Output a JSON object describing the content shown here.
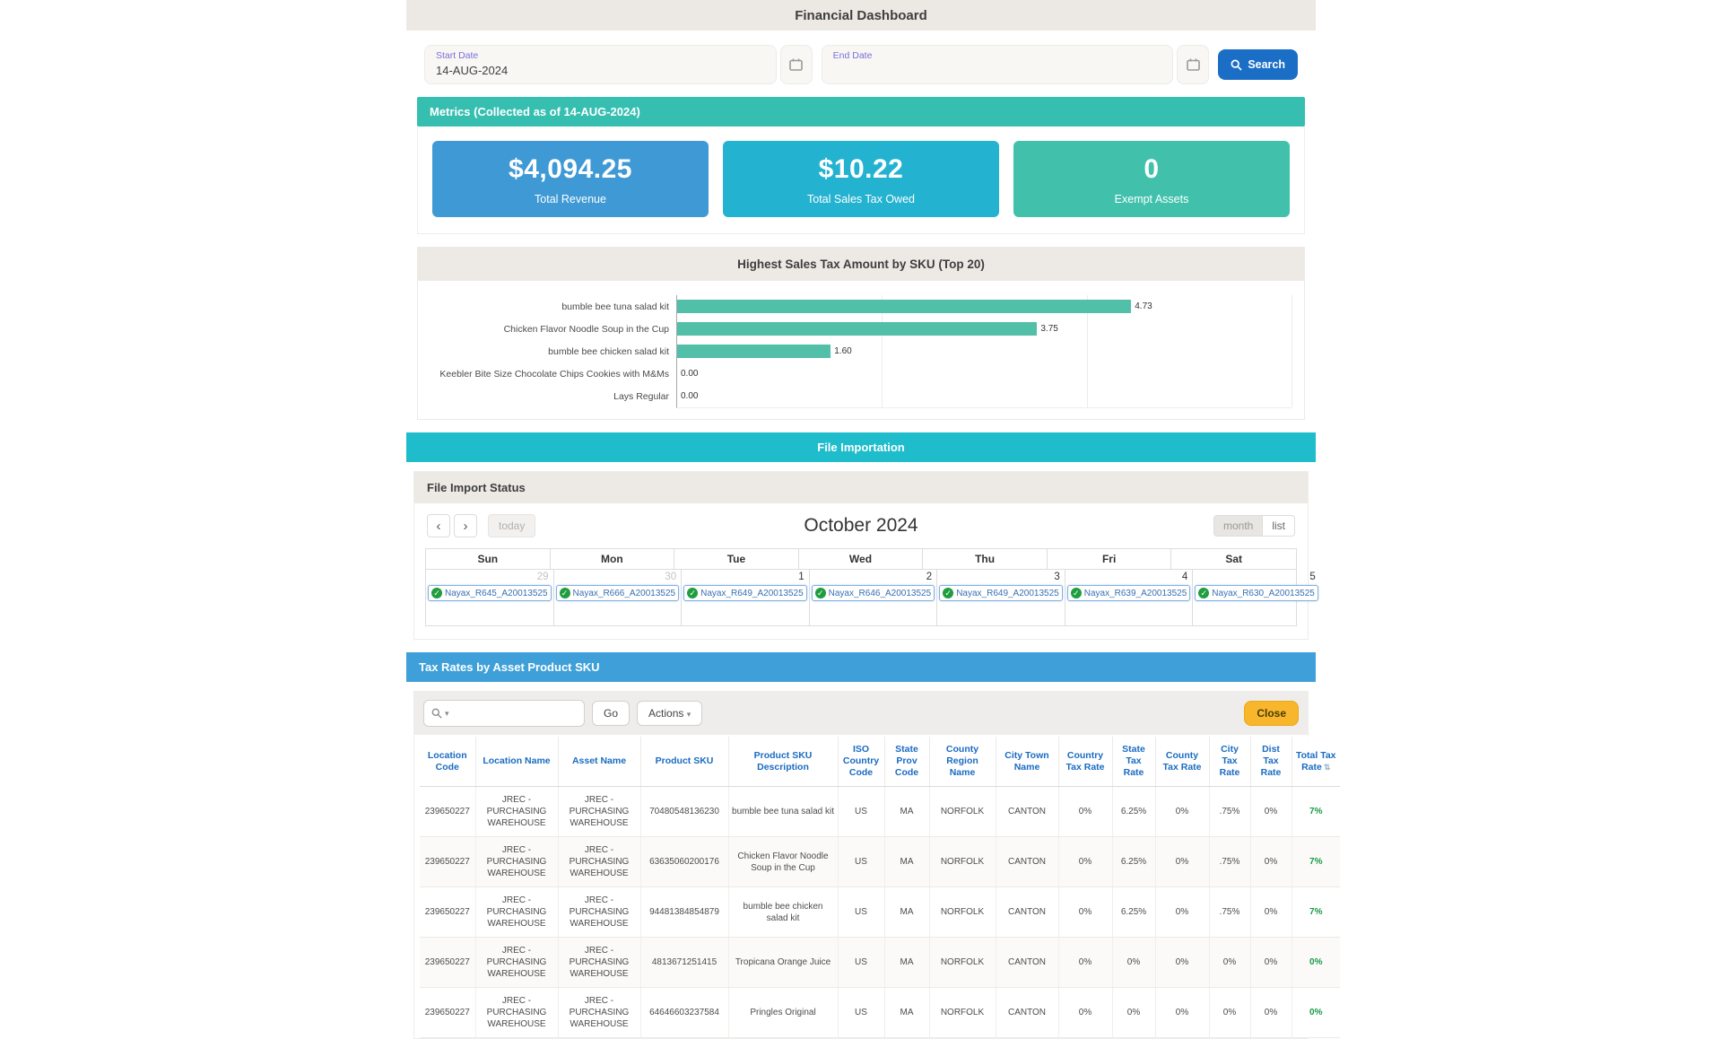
{
  "app": {
    "title": "Financial Dashboard"
  },
  "filters": {
    "start_date": {
      "label": "Start Date",
      "value": "14-AUG-2024"
    },
    "end_date": {
      "label": "End Date",
      "value": ""
    },
    "search_button": "Search",
    "search_button_color": "#1b6ec6"
  },
  "metrics": {
    "header": "Metrics (Collected as of 14-AUG-2024)",
    "header_color": "#36bfb1",
    "cards": [
      {
        "value": "$4,094.25",
        "label": "Total Revenue",
        "color": "#3e99d4"
      },
      {
        "value": "$10.22",
        "label": "Total Sales Tax Owed",
        "color": "#23b2d0"
      },
      {
        "value": "0",
        "label": "Exempt Assets",
        "color": "#41c1ac"
      }
    ]
  },
  "chart_data": {
    "type": "bar",
    "orientation": "horizontal",
    "title": "Highest Sales Tax Amount by SKU (Top 20)",
    "categories": [
      "bumble bee tuna salad kit",
      "Chicken Flavor Noodle Soup in the Cup",
      "bumble bee chicken salad kit",
      "Keebler Bite Size Chocolate Chips Cookies with M&Ms",
      "Lays Regular"
    ],
    "values": [
      4.73,
      3.75,
      1.6,
      0.0,
      0.0
    ],
    "value_labels": [
      "4.73",
      "3.75",
      "1.60",
      "0.00",
      "0.00"
    ],
    "xlabel": "",
    "ylabel": "",
    "xlim": [
      0,
      6.4
    ],
    "grid": true,
    "legend": false,
    "bar_color": "#52bfa9"
  },
  "file_importation": {
    "banner": "File Importation",
    "banner_color": "#1fbccb",
    "panel_title": "File Import Status",
    "calendar": {
      "title": "October 2024",
      "today_label": "today",
      "view_month": "month",
      "view_list": "list",
      "weekdays": [
        "Sun",
        "Mon",
        "Tue",
        "Wed",
        "Thu",
        "Fri",
        "Sat"
      ],
      "days": [
        {
          "num": "29",
          "muted": true,
          "event": "Nayax_R645_A20013525"
        },
        {
          "num": "30",
          "muted": true,
          "event": "Nayax_R666_A20013525"
        },
        {
          "num": "1",
          "muted": false,
          "event": "Nayax_R649_A20013525"
        },
        {
          "num": "2",
          "muted": false,
          "event": "Nayax_R646_A20013525"
        },
        {
          "num": "3",
          "muted": false,
          "event": "Nayax_R649_A20013525"
        },
        {
          "num": "4",
          "muted": false,
          "event": "Nayax_R639_A20013525"
        },
        {
          "num": "5",
          "muted": false,
          "event": "Nayax_R630_A20013525"
        }
      ],
      "event_check_color": "#1f9d3f"
    }
  },
  "tax_table": {
    "banner": "Tax Rates by Asset Product SKU",
    "banner_color": "#3e9fd9",
    "toolbar": {
      "go_label": "Go",
      "actions_label": "Actions",
      "close_label": "Close",
      "close_color": "#f7b62c"
    },
    "columns": [
      "Location Code",
      "Location Name",
      "Asset Name",
      "Product SKU",
      "Product SKU Description",
      "ISO Country Code",
      "State Prov Code",
      "County Region Name",
      "City Town Name",
      "Country Tax Rate",
      "State Tax Rate",
      "County Tax Rate",
      "City Tax Rate",
      "Dist Tax Rate",
      "Total Tax Rate"
    ],
    "total_rate_color": "#169a46",
    "rows": [
      [
        "239650227",
        "JREC - PURCHASING WAREHOUSE",
        "JREC - PURCHASING WAREHOUSE",
        "70480548136230",
        "bumble bee tuna salad kit",
        "US",
        "MA",
        "NORFOLK",
        "CANTON",
        "0%",
        "6.25%",
        "0%",
        ".75%",
        "0%",
        "7%"
      ],
      [
        "239650227",
        "JREC - PURCHASING WAREHOUSE",
        "JREC - PURCHASING WAREHOUSE",
        "63635060200176",
        "Chicken Flavor Noodle Soup in the Cup",
        "US",
        "MA",
        "NORFOLK",
        "CANTON",
        "0%",
        "6.25%",
        "0%",
        ".75%",
        "0%",
        "7%"
      ],
      [
        "239650227",
        "JREC - PURCHASING WAREHOUSE",
        "JREC - PURCHASING WAREHOUSE",
        "94481384854879",
        "bumble bee chicken salad kit",
        "US",
        "MA",
        "NORFOLK",
        "CANTON",
        "0%",
        "6.25%",
        "0%",
        ".75%",
        "0%",
        "7%"
      ],
      [
        "239650227",
        "JREC - PURCHASING WAREHOUSE",
        "JREC - PURCHASING WAREHOUSE",
        "4813671251415",
        "Tropicana Orange Juice",
        "US",
        "MA",
        "NORFOLK",
        "CANTON",
        "0%",
        "0%",
        "0%",
        "0%",
        "0%",
        "0%"
      ],
      [
        "239650227",
        "JREC - PURCHASING WAREHOUSE",
        "JREC - PURCHASING WAREHOUSE",
        "64646603237584",
        "Pringles Original",
        "US",
        "MA",
        "NORFOLK",
        "CANTON",
        "0%",
        "0%",
        "0%",
        "0%",
        "0%",
        "0%"
      ]
    ]
  },
  "icons": {
    "check": "✓",
    "sort": "⇅",
    "caret": "▾",
    "chevron_left": "‹",
    "chevron_right": "›"
  }
}
